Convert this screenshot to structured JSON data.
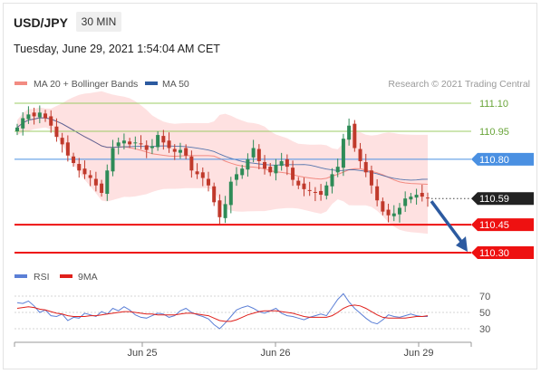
{
  "header": {
    "symbol": "USD/JPY",
    "timeframe": "30 MIN",
    "timestamp": "Tuesday, June 29, 2021 1:54:04 AM CET"
  },
  "legend": {
    "bollinger_label": "MA 20 + Bollinger Bands",
    "bollinger_color": "#f28b82",
    "ma50_label": "MA 50",
    "ma50_color": "#2c5aa0"
  },
  "credit": "Research © 2021 Trading Central",
  "colors": {
    "up": "#2e8b57",
    "down": "#c0392b",
    "band_fill": "#fdd7d7",
    "resistance": "#9ccc65",
    "pivot": "#4a90e2",
    "support": "#ee1111",
    "last": "#222222",
    "rsi": "#5b7fd6",
    "rsi_ma": "#e0201b",
    "arrow": "#2c5aa0"
  },
  "chart_data": [
    {
      "type": "candlestick",
      "title": "USD/JPY 30 MIN",
      "x_labels": [
        "Jun 25",
        "Jun 26",
        "Jun 29"
      ],
      "y_ticks": [
        111.1,
        110.95,
        110.8,
        110.59,
        110.45,
        110.3
      ],
      "ylim": [
        110.3,
        111.1
      ],
      "levels": [
        {
          "value": 111.1,
          "label": "111.10",
          "kind": "resistance"
        },
        {
          "value": 110.95,
          "label": "110.95",
          "kind": "resistance"
        },
        {
          "value": 110.8,
          "label": "110.80",
          "kind": "pivot"
        },
        {
          "value": 110.59,
          "label": "110.59",
          "kind": "last"
        },
        {
          "value": 110.45,
          "label": "110.45",
          "kind": "support"
        },
        {
          "value": 110.3,
          "label": "110.30",
          "kind": "support"
        }
      ],
      "series": [
        {
          "name": "MA 20 + Bollinger Bands",
          "type": "band"
        },
        {
          "name": "MA 50",
          "type": "line"
        }
      ],
      "close_path": [
        110.97,
        111.02,
        111.04,
        111.03,
        111.05,
        111.02,
        110.98,
        110.92,
        110.88,
        110.82,
        110.78,
        110.74,
        110.72,
        110.7,
        110.66,
        110.62,
        110.74,
        110.86,
        110.89,
        110.9,
        110.88,
        110.89,
        110.88,
        110.85,
        110.87,
        110.93,
        110.89,
        110.86,
        110.84,
        110.85,
        110.82,
        110.74,
        110.72,
        110.7,
        110.66,
        110.57,
        110.49,
        110.56,
        110.68,
        110.72,
        110.75,
        110.8,
        110.86,
        110.79,
        110.75,
        110.73,
        110.77,
        110.79,
        110.76,
        110.69,
        110.66,
        110.64,
        110.63,
        110.62,
        110.61,
        110.66,
        110.72,
        110.76,
        110.91,
        110.98,
        110.86,
        110.79,
        110.73,
        110.66,
        110.58,
        110.52,
        110.5,
        110.51,
        110.54,
        110.59,
        110.6,
        110.61,
        110.6,
        110.59
      ],
      "forecast": {
        "from": 110.59,
        "to": 110.3
      }
    },
    {
      "type": "line",
      "title": "RSI",
      "ylim": [
        20,
        80
      ],
      "y_ticks": [
        70,
        50,
        30
      ],
      "series": [
        {
          "name": "RSI"
        },
        {
          "name": "9MA"
        }
      ],
      "rsi": [
        62,
        61,
        64,
        58,
        50,
        53,
        46,
        45,
        48,
        40,
        44,
        43,
        49,
        47,
        45,
        51,
        48,
        55,
        52,
        57,
        53,
        47,
        44,
        43,
        46,
        49,
        48,
        44,
        46,
        52,
        55,
        50,
        47,
        45,
        42,
        35,
        30,
        37,
        45,
        53,
        56,
        58,
        55,
        51,
        49,
        52,
        55,
        49,
        46,
        45,
        43,
        41,
        44,
        46,
        48,
        46,
        56,
        66,
        73,
        63,
        55,
        49,
        43,
        38,
        36,
        41,
        47,
        45,
        44,
        46,
        48,
        46,
        45,
        45
      ],
      "rsi_ma": [
        55,
        56,
        57,
        56,
        54,
        53,
        51,
        49,
        48,
        46,
        45,
        45,
        45,
        46,
        46,
        47,
        48,
        49,
        50,
        51,
        51,
        50,
        49,
        48,
        48,
        47,
        47,
        47,
        47,
        48,
        49,
        49,
        48,
        47,
        46,
        43,
        40,
        39,
        39,
        41,
        44,
        47,
        49,
        51,
        52,
        52,
        52,
        51,
        50,
        49,
        47,
        45,
        44,
        44,
        44,
        44,
        46,
        50,
        55,
        58,
        59,
        58,
        55,
        51,
        47,
        44,
        43,
        43,
        43,
        43,
        44,
        45,
        45,
        46
      ]
    }
  ]
}
